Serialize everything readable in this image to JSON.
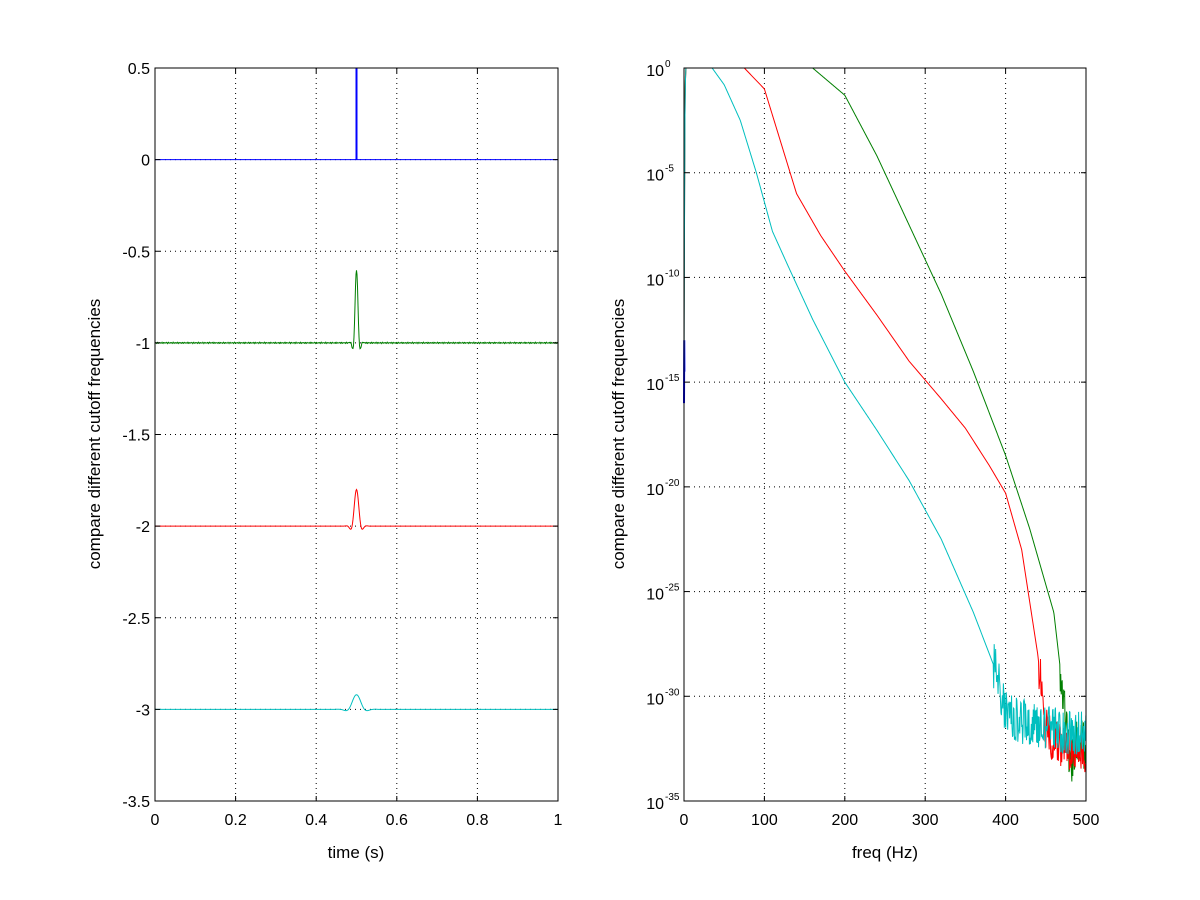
{
  "chart_data": [
    {
      "type": "line",
      "xlabel": "time (s)",
      "ylabel": "compare different cutoff frequencies",
      "xlim": [
        0,
        1
      ],
      "ylim": [
        -3.5,
        0.5
      ],
      "xticks": [
        "0",
        "0.2",
        "0.4",
        "0.6",
        "0.8",
        "1"
      ],
      "xtick_values": [
        0,
        0.2,
        0.4,
        0.6,
        0.8,
        1
      ],
      "yticks": [
        "0.5",
        "0",
        "-0.5",
        "-1",
        "-1.5",
        "-2",
        "-2.5",
        "-3",
        "-3.5"
      ],
      "ytick_values": [
        0.5,
        0,
        -0.5,
        -1,
        -1.5,
        -2,
        -2.5,
        -3,
        -3.5
      ],
      "grid": true,
      "series": [
        {
          "color": "#0000ff",
          "baseline": 0,
          "impulse_t": 0.5,
          "peak": 0.5,
          "kind": "spike"
        },
        {
          "color": "#007f00",
          "baseline": -1,
          "impulse_t": 0.5,
          "peak": -0.6,
          "min": -1.08,
          "kind": "pulse"
        },
        {
          "color": "#ff0000",
          "baseline": -2,
          "impulse_t": 0.5,
          "peak": -1.8,
          "min": -2.06,
          "kind": "pulse"
        },
        {
          "color": "#00bfbf",
          "baseline": -3,
          "impulse_t": 0.5,
          "peak": -2.92,
          "min": -3.01,
          "kind": "pulse"
        }
      ]
    },
    {
      "type": "line",
      "xlabel": "freq (Hz)",
      "ylabel": "compare different cutoff frequencies",
      "yscale": "log",
      "xlim": [
        0,
        500
      ],
      "ylim_exponent": [
        -35,
        0
      ],
      "xticks": [
        "0",
        "100",
        "200",
        "300",
        "400",
        "500"
      ],
      "xtick_values": [
        0,
        100,
        200,
        300,
        400,
        500
      ],
      "ytick_base": "10",
      "ytick_exponents": [
        "0",
        "-5",
        "-10",
        "-15",
        "-20",
        "-25",
        "-30",
        "-35"
      ],
      "ytick_values": [
        0,
        -5,
        -10,
        -15,
        -20,
        -25,
        -30,
        -35
      ],
      "grid": true,
      "series": [
        {
          "color": "#0000ff",
          "x": [
            0,
            0.3,
            0.5
          ],
          "log10y": [
            -16,
            -13,
            -14.5
          ]
        },
        {
          "color": "#007f00",
          "x": [
            0,
            1,
            2,
            160,
            200,
            240,
            280,
            320,
            360,
            400,
            430,
            460,
            475,
            480,
            490,
            500
          ],
          "log10y": [
            -12,
            -2,
            0,
            0,
            -1.3,
            -4.2,
            -7.5,
            -10.8,
            -14.5,
            -18.5,
            -22,
            -26,
            -31,
            -33.5,
            -32,
            -32.5
          ]
        },
        {
          "color": "#ff0000",
          "x": [
            0,
            1,
            2,
            75,
            100,
            120,
            140,
            170,
            200,
            240,
            280,
            320,
            350,
            380,
            400,
            420,
            440,
            450,
            460,
            480,
            500
          ],
          "log10y": [
            -14,
            -3,
            0,
            0,
            -1,
            -3.5,
            -6,
            -8,
            -9.7,
            -11.8,
            -14,
            -15.8,
            -17.2,
            -19,
            -20.3,
            -23,
            -28,
            -31.5,
            -32.2,
            -32.5,
            -32.8
          ]
        },
        {
          "color": "#00bfbf",
          "x": [
            0,
            1,
            2,
            35,
            50,
            70,
            90,
            110,
            130,
            160,
            200,
            240,
            280,
            320,
            360,
            390,
            400,
            420,
            450,
            480,
            500
          ],
          "log10y": [
            -15,
            -3,
            0,
            0,
            -0.8,
            -2.5,
            -5,
            -7.8,
            -9.5,
            -12,
            -15,
            -17.3,
            -19.7,
            -22.5,
            -26,
            -29,
            -30.8,
            -31.2,
            -31.5,
            -31.8,
            -31.6
          ]
        }
      ]
    }
  ]
}
